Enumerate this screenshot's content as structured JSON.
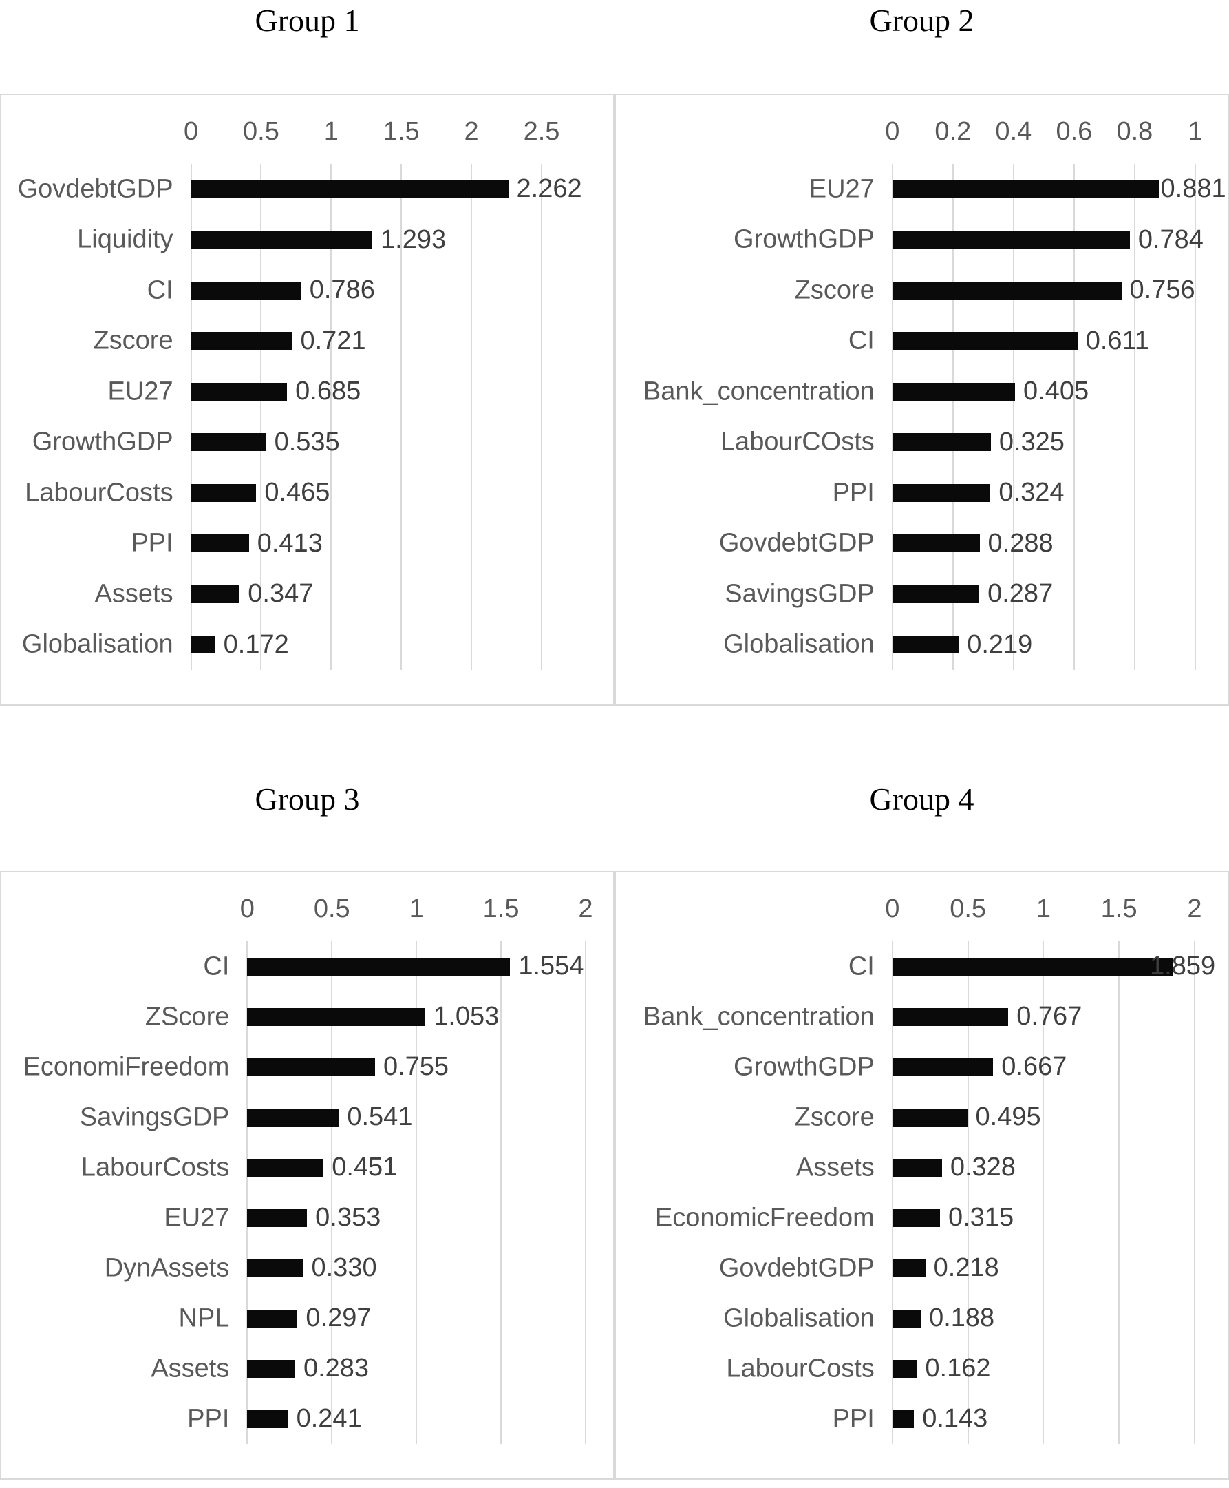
{
  "styles": {
    "bar_color": "#0a0a0a",
    "grid_color": "#d9d9d9",
    "tick_color": "#595959",
    "category_color": "#595959",
    "value_color": "#3f3f3f",
    "title_color": "#000000",
    "background": "#ffffff"
  },
  "chart_data": [
    {
      "title": "Group 1",
      "type": "bar",
      "orientation": "horizontal",
      "axis_position": "top",
      "grid": true,
      "legend": false,
      "axis_ticks": [
        "0",
        "0.5",
        "1",
        "1.5",
        "2",
        "2.5"
      ],
      "axis_max": 2.5,
      "plot_left_pct": 31.0,
      "plot_right_pct": 88.3,
      "bars": [
        {
          "label": "GovdebtGDP",
          "value": 2.262,
          "display": "2.262"
        },
        {
          "label": "Liquidity",
          "value": 1.293,
          "display": "1.293"
        },
        {
          "label": "CI",
          "value": 0.786,
          "display": "0.786"
        },
        {
          "label": "Zscore",
          "value": 0.721,
          "display": "0.721"
        },
        {
          "label": "EU27",
          "value": 0.685,
          "display": "0.685"
        },
        {
          "label": "GrowthGDP",
          "value": 0.535,
          "display": "0.535"
        },
        {
          "label": "LabourCosts",
          "value": 0.465,
          "display": "0.465"
        },
        {
          "label": "PPI",
          "value": 0.413,
          "display": "0.413"
        },
        {
          "label": "Assets",
          "value": 0.347,
          "display": "0.347"
        },
        {
          "label": "Globalisation",
          "value": 0.172,
          "display": "0.172"
        }
      ]
    },
    {
      "title": "Group 2",
      "type": "bar",
      "orientation": "horizontal",
      "axis_position": "top",
      "grid": true,
      "legend": false,
      "axis_ticks": [
        "0",
        "0.2",
        "0.4",
        "0.6",
        "0.8",
        "1"
      ],
      "axis_max": 1.0,
      "plot_left_pct": 45.2,
      "plot_right_pct": 94.7,
      "bars": [
        {
          "label": "EU27",
          "value": 0.881,
          "display": "0.881",
          "label_offset": 2
        },
        {
          "label": "GrowthGDP",
          "value": 0.784,
          "display": "0.784"
        },
        {
          "label": "Zscore",
          "value": 0.756,
          "display": "0.756"
        },
        {
          "label": "CI",
          "value": 0.611,
          "display": "0.611"
        },
        {
          "label": "Bank_concentration",
          "value": 0.405,
          "display": "0.405"
        },
        {
          "label": "LabourCOsts",
          "value": 0.325,
          "display": "0.325"
        },
        {
          "label": "PPI",
          "value": 0.324,
          "display": "0.324"
        },
        {
          "label": "GovdebtGDP",
          "value": 0.288,
          "display": "0.288"
        },
        {
          "label": "SavingsGDP",
          "value": 0.287,
          "display": "0.287"
        },
        {
          "label": "Globalisation",
          "value": 0.219,
          "display": "0.219"
        }
      ]
    },
    {
      "title": "Group 3",
      "type": "bar",
      "orientation": "horizontal",
      "axis_position": "top",
      "grid": true,
      "legend": false,
      "axis_ticks": [
        "0",
        "0.5",
        "1",
        "1.5",
        "2"
      ],
      "axis_max": 2.0,
      "plot_left_pct": 40.2,
      "plot_right_pct": 95.5,
      "bars": [
        {
          "label": "CI",
          "value": 1.554,
          "display": "1.554"
        },
        {
          "label": "ZScore",
          "value": 1.053,
          "display": "1.053"
        },
        {
          "label": "EconomiFreedom",
          "value": 0.755,
          "display": "0.755"
        },
        {
          "label": "SavingsGDP",
          "value": 0.541,
          "display": "0.541"
        },
        {
          "label": "LabourCosts",
          "value": 0.451,
          "display": "0.451"
        },
        {
          "label": "EU27",
          "value": 0.353,
          "display": "0.353"
        },
        {
          "label": "DynAssets",
          "value": 0.33,
          "display": "0.330"
        },
        {
          "label": "NPL",
          "value": 0.297,
          "display": "0.297"
        },
        {
          "label": "Assets",
          "value": 0.283,
          "display": "0.283"
        },
        {
          "label": "PPI",
          "value": 0.241,
          "display": "0.241"
        }
      ]
    },
    {
      "title": "Group 4",
      "type": "bar",
      "orientation": "horizontal",
      "axis_position": "top",
      "grid": true,
      "legend": false,
      "axis_ticks": [
        "0",
        "0.5",
        "1",
        "1.5",
        "2"
      ],
      "axis_max": 2.0,
      "plot_left_pct": 45.2,
      "plot_right_pct": 94.6,
      "bars": [
        {
          "label": "CI",
          "value": 1.859,
          "display": "1.859",
          "label_offset": -34
        },
        {
          "label": "Bank_concentration",
          "value": 0.767,
          "display": "0.767"
        },
        {
          "label": "GrowthGDP",
          "value": 0.667,
          "display": "0.667"
        },
        {
          "label": "Zscore",
          "value": 0.495,
          "display": "0.495"
        },
        {
          "label": "Assets",
          "value": 0.328,
          "display": "0.328"
        },
        {
          "label": "EconomicFreedom",
          "value": 0.315,
          "display": "0.315"
        },
        {
          "label": "GovdebtGDP",
          "value": 0.218,
          "display": "0.218"
        },
        {
          "label": "Globalisation",
          "value": 0.188,
          "display": "0.188"
        },
        {
          "label": "LabourCosts",
          "value": 0.162,
          "display": "0.162"
        },
        {
          "label": "PPI",
          "value": 0.143,
          "display": "0.143"
        }
      ]
    }
  ]
}
